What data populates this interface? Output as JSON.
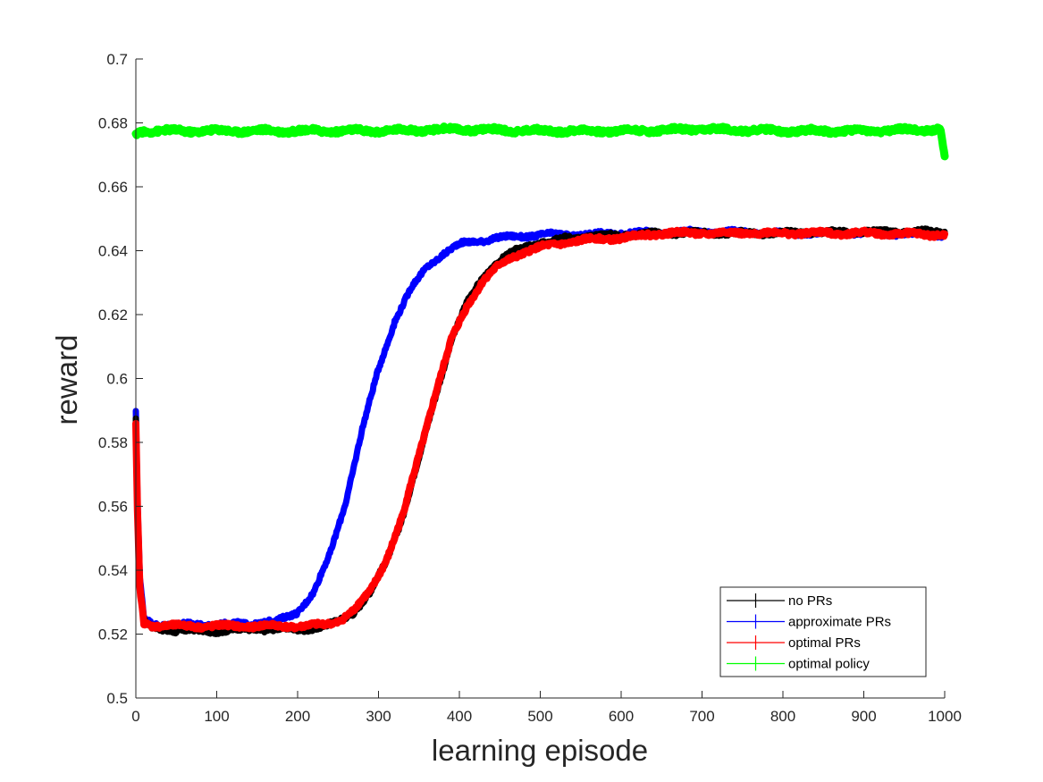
{
  "chart_data": {
    "type": "line",
    "title": "",
    "xlabel": "learning episode",
    "ylabel": "reward",
    "xlim": [
      0,
      1000
    ],
    "ylim": [
      0.5,
      0.7
    ],
    "xticks": [
      "0",
      "100",
      "200",
      "300",
      "400",
      "500",
      "600",
      "700",
      "800",
      "900",
      "1000"
    ],
    "yticks": [
      "0.5",
      "0.52",
      "0.54",
      "0.56",
      "0.58",
      "0.6",
      "0.62",
      "0.64",
      "0.66",
      "0.68",
      "0.7"
    ],
    "grid": false,
    "legend_position": "bottom-right",
    "series": [
      {
        "name": "no PRs",
        "color": "#000000",
        "x": [
          0,
          2,
          5,
          10,
          20,
          50,
          100,
          150,
          200,
          230,
          250,
          270,
          290,
          310,
          330,
          350,
          370,
          390,
          410,
          430,
          450,
          470,
          490,
          510,
          530,
          560,
          600,
          650,
          700,
          800,
          900,
          1000
        ],
        "y": [
          0.587,
          0.56,
          0.535,
          0.524,
          0.522,
          0.521,
          0.521,
          0.5215,
          0.5215,
          0.522,
          0.524,
          0.527,
          0.533,
          0.543,
          0.557,
          0.575,
          0.594,
          0.612,
          0.624,
          0.632,
          0.637,
          0.64,
          0.642,
          0.643,
          0.644,
          0.6445,
          0.645,
          0.6455,
          0.6455,
          0.6455,
          0.646,
          0.646
        ]
      },
      {
        "name": "approximate PRs",
        "color": "#0000ff",
        "x": [
          0,
          2,
          5,
          10,
          20,
          50,
          100,
          150,
          175,
          200,
          220,
          240,
          260,
          280,
          300,
          320,
          340,
          360,
          380,
          400,
          420,
          450,
          500,
          550,
          600,
          700,
          800,
          900,
          1000
        ],
        "y": [
          0.589,
          0.562,
          0.537,
          0.525,
          0.5232,
          0.523,
          0.523,
          0.5235,
          0.524,
          0.527,
          0.533,
          0.545,
          0.562,
          0.584,
          0.603,
          0.618,
          0.628,
          0.635,
          0.639,
          0.642,
          0.643,
          0.644,
          0.645,
          0.645,
          0.6455,
          0.646,
          0.6455,
          0.6455,
          0.645
        ]
      },
      {
        "name": "optimal PRs",
        "color": "#ff0000",
        "x": [
          0,
          2,
          5,
          10,
          20,
          50,
          100,
          150,
          200,
          230,
          250,
          270,
          290,
          310,
          330,
          350,
          370,
          390,
          410,
          430,
          450,
          470,
          490,
          510,
          530,
          560,
          600,
          650,
          700,
          800,
          900,
          1000
        ],
        "y": [
          0.585,
          0.558,
          0.534,
          0.5235,
          0.5228,
          0.5225,
          0.5225,
          0.5225,
          0.5225,
          0.5228,
          0.524,
          0.5275,
          0.5335,
          0.5435,
          0.557,
          0.576,
          0.595,
          0.612,
          0.623,
          0.631,
          0.6355,
          0.6385,
          0.6405,
          0.6415,
          0.6425,
          0.6435,
          0.644,
          0.6455,
          0.6455,
          0.6455,
          0.6455,
          0.645
        ]
      },
      {
        "name": "optimal policy",
        "color": "#00ff00",
        "x": [
          0,
          2,
          5,
          10,
          50,
          100,
          200,
          300,
          400,
          500,
          600,
          700,
          800,
          900,
          995,
          1000
        ],
        "y": [
          0.676,
          0.677,
          0.6775,
          0.6775,
          0.6775,
          0.6775,
          0.6775,
          0.6775,
          0.678,
          0.6775,
          0.6775,
          0.678,
          0.6775,
          0.6775,
          0.678,
          0.669
        ]
      }
    ]
  }
}
